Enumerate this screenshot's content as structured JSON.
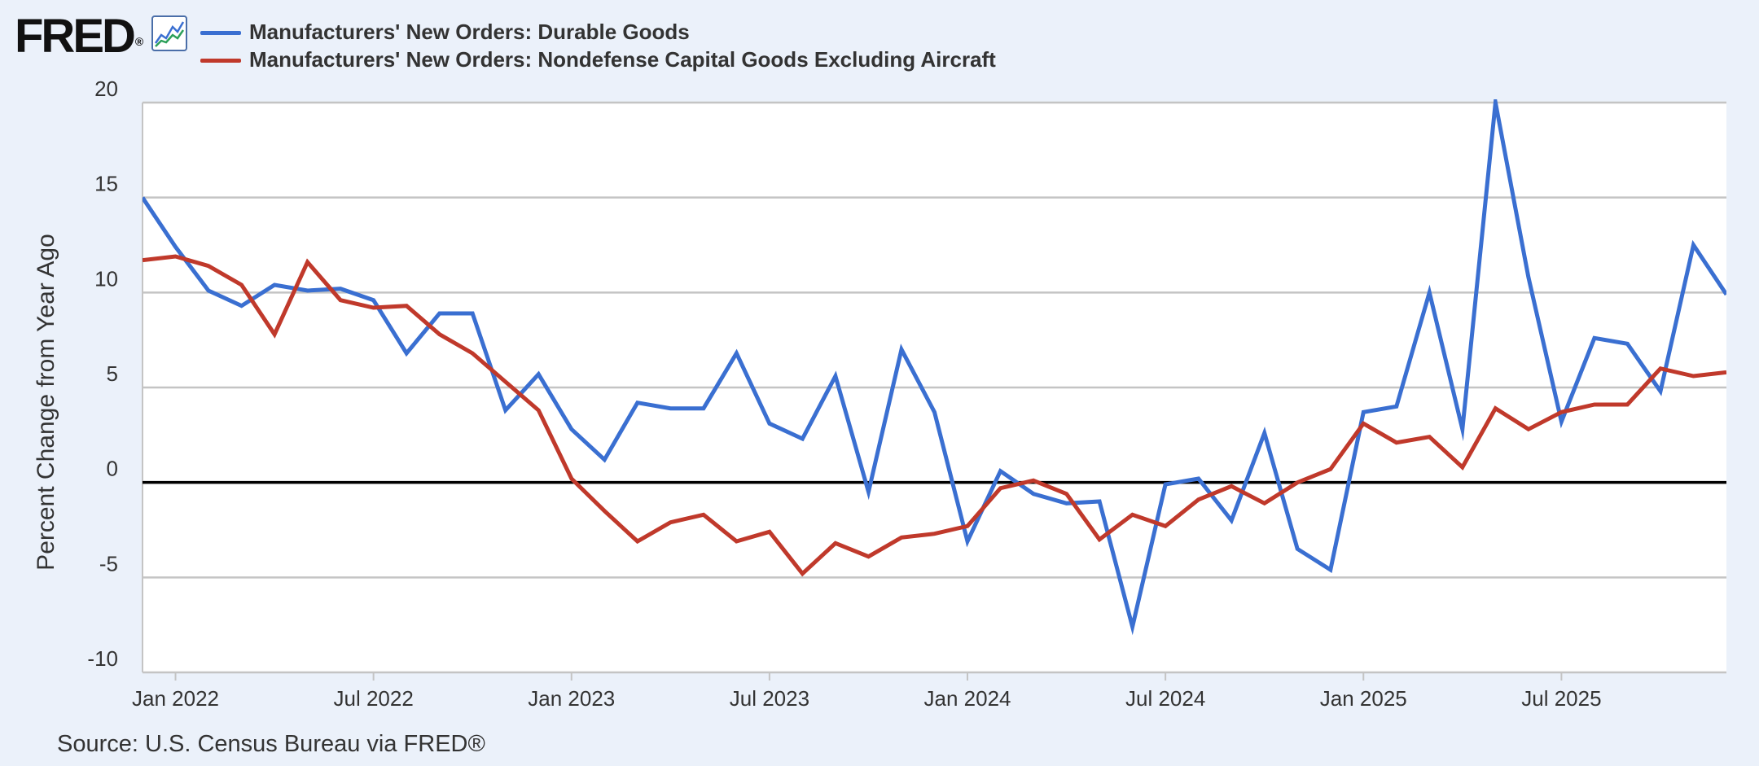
{
  "logo": {
    "text": "FRED",
    "reg": "®"
  },
  "icons": {
    "chart": "line-chart-icon"
  },
  "legend": [
    {
      "label": "Manufacturers' New Orders: Durable Goods",
      "color": "#3a6fd1"
    },
    {
      "label": "Manufacturers' New Orders: Nondefense Capital Goods Excluding Aircraft",
      "color": "#c0392b"
    }
  ],
  "source": "Source: U.S. Census Bureau via FRED®",
  "chart_data": {
    "type": "line",
    "ylabel": "Percent Change from Year Ago",
    "ylim": [
      -10,
      20
    ],
    "yticks": [
      -10,
      -5,
      0,
      5,
      10,
      15,
      20
    ],
    "ytick_labels": [
      "-10",
      "-5",
      "0",
      "5",
      "10",
      "15",
      "20"
    ],
    "xlim": [
      "2021-12",
      "2025-12"
    ],
    "xticks": [
      {
        "label": "Jan 2022",
        "x": "2022-01"
      },
      {
        "label": "Jul 2022",
        "x": "2022-07"
      },
      {
        "label": "Jan 2023",
        "x": "2023-01"
      },
      {
        "label": "Jul 2023",
        "x": "2023-07"
      },
      {
        "label": "Jan 2024",
        "x": "2024-01"
      },
      {
        "label": "Jul 2024",
        "x": "2024-07"
      },
      {
        "label": "Jan 2025",
        "x": "2025-01"
      },
      {
        "label": "Jul 2025",
        "x": "2025-07"
      }
    ],
    "grid": true,
    "zero_line": true,
    "background": "#ffffff",
    "x": [
      "2021-12",
      "2022-01",
      "2022-02",
      "2022-03",
      "2022-04",
      "2022-05",
      "2022-06",
      "2022-07",
      "2022-08",
      "2022-09",
      "2022-10",
      "2022-11",
      "2022-12",
      "2023-01",
      "2023-02",
      "2023-03",
      "2023-04",
      "2023-05",
      "2023-06",
      "2023-07",
      "2023-08",
      "2023-09",
      "2023-10",
      "2023-11",
      "2023-12",
      "2024-01",
      "2024-02",
      "2024-03",
      "2024-04",
      "2024-05",
      "2024-06",
      "2024-07",
      "2024-08",
      "2024-09",
      "2024-10",
      "2024-11",
      "2024-12",
      "2025-01",
      "2025-02",
      "2025-03",
      "2025-04",
      "2025-05",
      "2025-06",
      "2025-07",
      "2025-08",
      "2025-09",
      "2025-10",
      "2025-11",
      "2025-12"
    ],
    "series": [
      {
        "name": "Manufacturers' New Orders: Durable Goods",
        "color": "#3a6fd1",
        "values": [
          15.0,
          12.4,
          10.1,
          9.3,
          10.4,
          10.1,
          10.2,
          9.6,
          6.8,
          8.9,
          8.9,
          3.8,
          5.7,
          2.8,
          1.2,
          4.2,
          3.9,
          3.9,
          6.8,
          3.1,
          2.3,
          5.6,
          -0.5,
          7.0,
          3.7,
          -3.1,
          0.6,
          -0.6,
          -1.1,
          -1.0,
          -7.6,
          -0.1,
          0.2,
          -2.0,
          2.6,
          -3.5,
          -4.6,
          3.7,
          4.0,
          10.0,
          2.8,
          20.0,
          10.8,
          3.2,
          7.6,
          7.3,
          4.8,
          12.5,
          9.9
        ]
      },
      {
        "name": "Manufacturers' New Orders: Nondefense Capital Goods Excluding Aircraft",
        "color": "#c0392b",
        "values": [
          11.7,
          11.9,
          11.4,
          10.4,
          7.8,
          11.6,
          9.6,
          9.2,
          9.3,
          7.8,
          6.8,
          5.3,
          3.8,
          0.2,
          -1.5,
          -3.1,
          -2.1,
          -1.7,
          -3.1,
          -2.6,
          -4.8,
          -3.2,
          -3.9,
          -2.9,
          -2.7,
          -2.3,
          -0.3,
          0.1,
          -0.6,
          -3.0,
          -1.7,
          -2.3,
          -0.9,
          -0.2,
          -1.1,
          0.0,
          0.7,
          3.1,
          2.1,
          2.4,
          0.8,
          3.9,
          2.8,
          3.7,
          4.1,
          4.1,
          6.0,
          5.6,
          5.8
        ]
      }
    ]
  }
}
